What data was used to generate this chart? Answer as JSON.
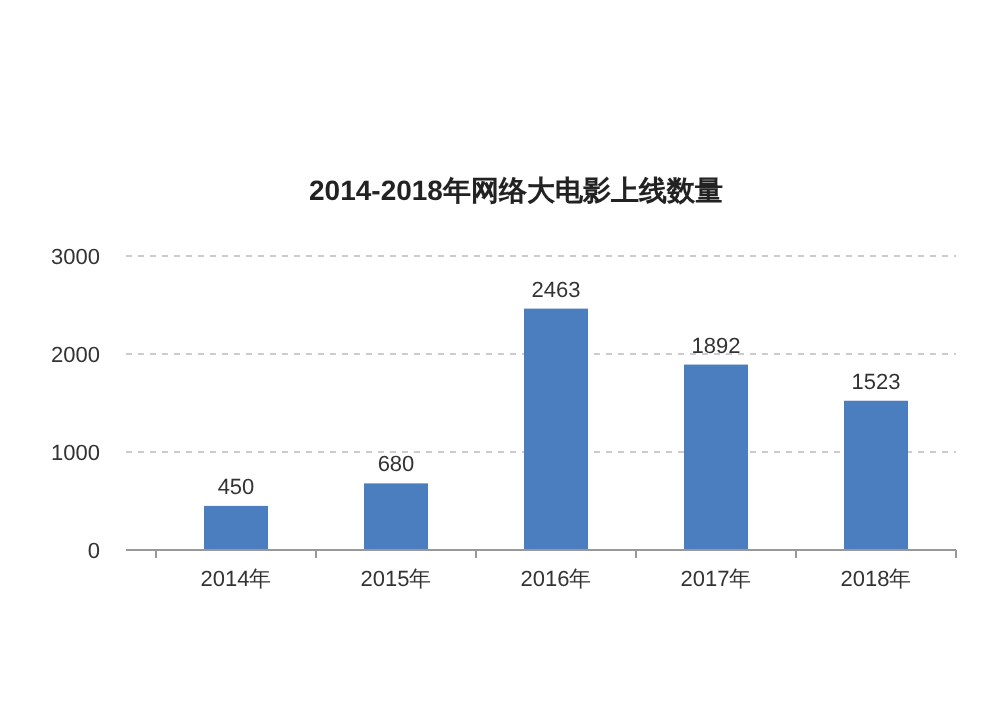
{
  "chart_data": {
    "type": "bar",
    "title": "2014-2018年网络大电影上线数量",
    "categories": [
      "2014年",
      "2015年",
      "2016年",
      "2017年",
      "2018年"
    ],
    "values": [
      450,
      680,
      2463,
      1892,
      1523
    ],
    "color": "#4a7ebf",
    "ylim": [
      0,
      3000
    ],
    "yticks": [
      0,
      1000,
      2000,
      3000
    ],
    "grid": "y",
    "data_labels": true
  }
}
